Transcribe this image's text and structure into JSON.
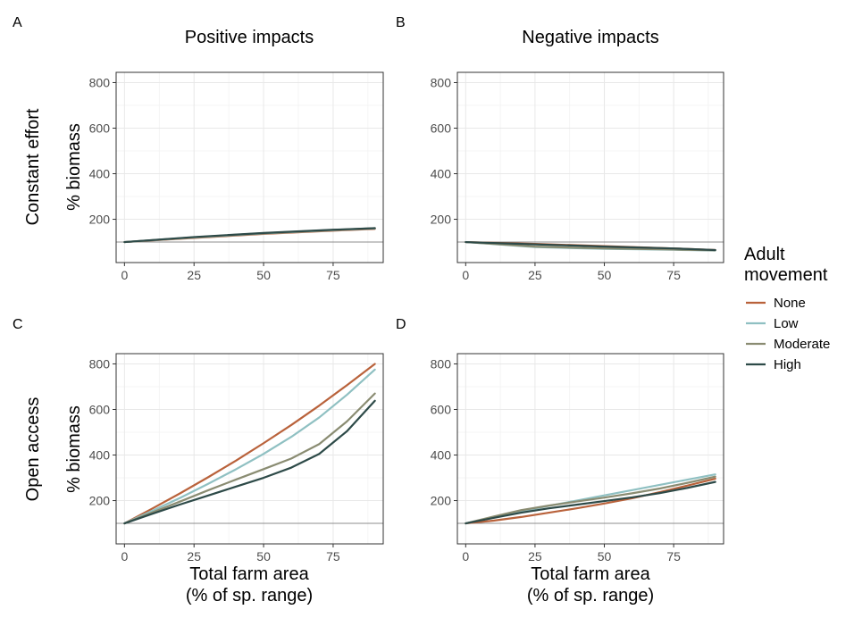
{
  "figure": {
    "column_titles": [
      "Positive impacts",
      "Negative impacts"
    ],
    "row_titles": [
      "Constant effort",
      "Open access"
    ],
    "panel_tags": [
      "A",
      "B",
      "C",
      "D"
    ],
    "y_label": "% biomass",
    "x_label_line1": "Total farm area",
    "x_label_line2": "(% of sp. range)"
  },
  "legend": {
    "title_line1": "Adult",
    "title_line2": "movement",
    "entries": [
      {
        "name": "None",
        "color": "#B9623B"
      },
      {
        "name": "Low",
        "color": "#8FC0C2"
      },
      {
        "name": "Moderate",
        "color": "#8A8C72"
      },
      {
        "name": "High",
        "color": "#2D4A48"
      }
    ]
  },
  "chart_data": [
    {
      "panel": "A",
      "type": "line",
      "column": "Positive impacts",
      "row": "Constant effort",
      "xlim": [
        -3,
        93
      ],
      "ylim": [
        10,
        845
      ],
      "xticks": [
        0,
        25,
        50,
        75
      ],
      "yticks": [
        200,
        400,
        600,
        800
      ],
      "reference_line_y": 100,
      "grid": true,
      "series": [
        {
          "name": "None",
          "x": [
            0,
            25,
            50,
            75,
            90
          ],
          "y": [
            100,
            118,
            136,
            150,
            158
          ]
        },
        {
          "name": "Low",
          "x": [
            0,
            25,
            50,
            75,
            90
          ],
          "y": [
            100,
            120,
            138,
            152,
            160
          ]
        },
        {
          "name": "Moderate",
          "x": [
            0,
            25,
            50,
            75,
            90
          ],
          "y": [
            100,
            121,
            139,
            153,
            161
          ]
        },
        {
          "name": "High",
          "x": [
            0,
            25,
            50,
            75,
            90
          ],
          "y": [
            100,
            122,
            140,
            154,
            161
          ]
        }
      ]
    },
    {
      "panel": "B",
      "type": "line",
      "column": "Negative impacts",
      "row": "Constant effort",
      "xlim": [
        -3,
        93
      ],
      "ylim": [
        10,
        845
      ],
      "xticks": [
        0,
        25,
        50,
        75
      ],
      "yticks": [
        200,
        400,
        600,
        800
      ],
      "reference_line_y": 100,
      "grid": true,
      "series": [
        {
          "name": "None",
          "x": [
            0,
            25,
            50,
            75,
            90
          ],
          "y": [
            100,
            92,
            82,
            72,
            65
          ]
        },
        {
          "name": "Low",
          "x": [
            0,
            25,
            50,
            75,
            90
          ],
          "y": [
            100,
            78,
            70,
            66,
            63
          ]
        },
        {
          "name": "Moderate",
          "x": [
            0,
            25,
            50,
            75,
            90
          ],
          "y": [
            100,
            80,
            72,
            67,
            64
          ]
        },
        {
          "name": "High",
          "x": [
            0,
            25,
            50,
            75,
            90
          ],
          "y": [
            100,
            90,
            80,
            72,
            65
          ]
        }
      ]
    },
    {
      "panel": "C",
      "type": "line",
      "column": "Positive impacts",
      "row": "Open access",
      "xlim": [
        -3,
        93
      ],
      "ylim": [
        10,
        845
      ],
      "xticks": [
        0,
        25,
        50,
        75
      ],
      "yticks": [
        200,
        400,
        600,
        800
      ],
      "reference_line_y": 100,
      "grid": true,
      "series": [
        {
          "name": "None",
          "x": [
            0,
            10,
            20,
            30,
            40,
            50,
            60,
            70,
            80,
            90
          ],
          "y": [
            100,
            165,
            232,
            302,
            375,
            452,
            532,
            617,
            707,
            800
          ]
        },
        {
          "name": "Low",
          "x": [
            0,
            10,
            20,
            30,
            40,
            50,
            60,
            70,
            80,
            90
          ],
          "y": [
            100,
            155,
            212,
            273,
            337,
            405,
            480,
            565,
            665,
            775
          ]
        },
        {
          "name": "Moderate",
          "x": [
            0,
            10,
            20,
            30,
            40,
            50,
            60,
            70,
            80,
            90
          ],
          "y": [
            100,
            148,
            196,
            245,
            292,
            338,
            385,
            448,
            548,
            670
          ]
        },
        {
          "name": "High",
          "x": [
            0,
            10,
            20,
            30,
            40,
            50,
            60,
            70,
            80,
            90
          ],
          "y": [
            100,
            142,
            183,
            222,
            261,
            300,
            345,
            405,
            505,
            638
          ]
        }
      ]
    },
    {
      "panel": "D",
      "type": "line",
      "column": "Negative impacts",
      "row": "Open access",
      "xlim": [
        -3,
        93
      ],
      "ylim": [
        10,
        845
      ],
      "xticks": [
        0,
        25,
        50,
        75
      ],
      "yticks": [
        200,
        400,
        600,
        800
      ],
      "reference_line_y": 100,
      "grid": true,
      "series": [
        {
          "name": "None",
          "x": [
            0,
            10,
            20,
            30,
            40,
            50,
            60,
            70,
            80,
            90
          ],
          "y": [
            100,
            112,
            128,
            147,
            166,
            187,
            210,
            237,
            266,
            296
          ]
        },
        {
          "name": "Low",
          "x": [
            0,
            10,
            20,
            30,
            40,
            50,
            60,
            70,
            80,
            90
          ],
          "y": [
            100,
            127,
            153,
            177,
            200,
            223,
            246,
            269,
            292,
            315
          ]
        },
        {
          "name": "Moderate",
          "x": [
            0,
            10,
            20,
            30,
            40,
            50,
            60,
            70,
            80,
            90
          ],
          "y": [
            100,
            130,
            158,
            178,
            196,
            213,
            232,
            253,
            278,
            305
          ]
        },
        {
          "name": "High",
          "x": [
            0,
            10,
            20,
            30,
            40,
            50,
            60,
            70,
            80,
            90
          ],
          "y": [
            100,
            124,
            147,
            166,
            182,
            198,
            214,
            233,
            256,
            282
          ]
        }
      ]
    }
  ]
}
